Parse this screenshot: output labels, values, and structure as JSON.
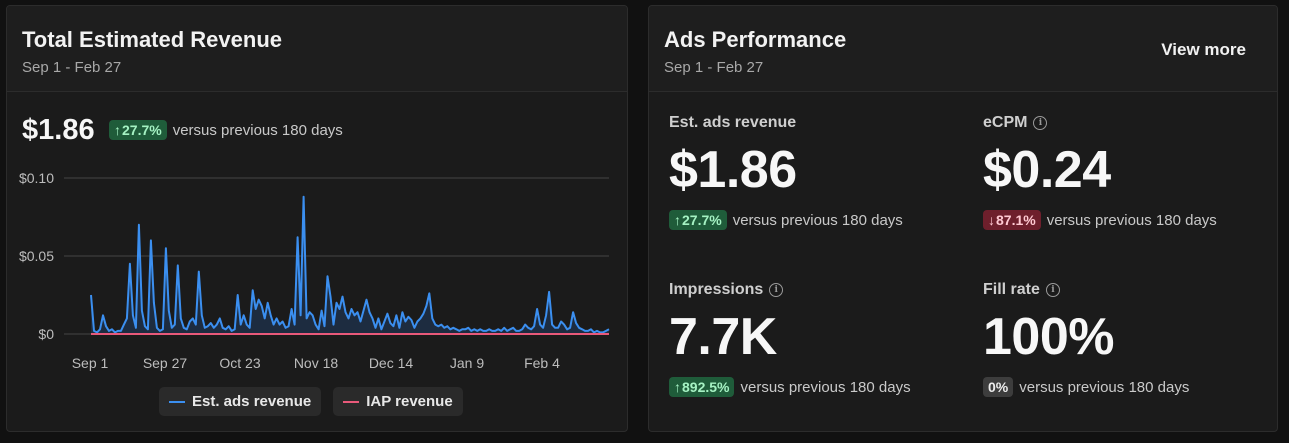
{
  "revenue_card": {
    "title": "Total Estimated Revenue",
    "date_range": "Sep 1 - Feb 27",
    "total": "$1.86",
    "change": "27.7%",
    "change_arrow": "↑",
    "comparison": "versus previous 180 days"
  },
  "chart_data": {
    "type": "line",
    "title": "",
    "xlabel": "",
    "ylabel": "",
    "ylim": [
      0,
      0.1
    ],
    "y_ticks": [
      "$0.10",
      "$0.05",
      "$0"
    ],
    "x_ticks": [
      "Sep 1",
      "Sep 27",
      "Oct 23",
      "Nov 18",
      "Dec 14",
      "Jan 9",
      "Feb 4"
    ],
    "grid": true,
    "series": [
      {
        "name": "Est. ads revenue",
        "color": "#3b8ff0",
        "values": [
          0.025,
          0.002,
          0.001,
          0.003,
          0.012,
          0.005,
          0.002,
          0.003,
          0.001,
          0.002,
          0.002,
          0.006,
          0.01,
          0.045,
          0.012,
          0.004,
          0.07,
          0.015,
          0.005,
          0.003,
          0.06,
          0.02,
          0.004,
          0.002,
          0.003,
          0.055,
          0.015,
          0.004,
          0.006,
          0.044,
          0.01,
          0.004,
          0.003,
          0.008,
          0.01,
          0.006,
          0.04,
          0.012,
          0.004,
          0.005,
          0.007,
          0.004,
          0.006,
          0.01,
          0.004,
          0.003,
          0.005,
          0.002,
          0.003,
          0.025,
          0.006,
          0.012,
          0.006,
          0.004,
          0.028,
          0.016,
          0.022,
          0.018,
          0.01,
          0.02,
          0.012,
          0.006,
          0.01,
          0.006,
          0.008,
          0.004,
          0.005,
          0.016,
          0.006,
          0.062,
          0.012,
          0.088,
          0.01,
          0.014,
          0.012,
          0.006,
          0.003,
          0.015,
          0.005,
          0.037,
          0.024,
          0.006,
          0.02,
          0.016,
          0.024,
          0.014,
          0.01,
          0.016,
          0.012,
          0.014,
          0.008,
          0.015,
          0.022,
          0.014,
          0.01,
          0.004,
          0.01,
          0.003,
          0.008,
          0.013,
          0.007,
          0.005,
          0.012,
          0.004,
          0.014,
          0.008,
          0.011,
          0.009,
          0.004,
          0.008,
          0.01,
          0.013,
          0.018,
          0.026,
          0.01,
          0.006,
          0.005,
          0.006,
          0.004,
          0.005,
          0.003,
          0.004,
          0.003,
          0.002,
          0.003,
          0.003,
          0.004,
          0.002,
          0.003,
          0.002,
          0.003,
          0.002,
          0.002,
          0.003,
          0.002,
          0.002,
          0.003,
          0.002,
          0.004,
          0.002,
          0.003,
          0.004,
          0.002,
          0.002,
          0.003,
          0.006,
          0.004,
          0.003,
          0.005,
          0.016,
          0.006,
          0.004,
          0.012,
          0.027,
          0.006,
          0.004,
          0.004,
          0.008,
          0.006,
          0.003,
          0.004,
          0.014,
          0.007,
          0.004,
          0.003,
          0.002,
          0.002,
          0.003,
          0.001,
          0.002,
          0.001,
          0.001,
          0.002,
          0.003
        ]
      },
      {
        "name": "IAP revenue",
        "color": "#e8597a",
        "values": [
          0,
          0,
          0,
          0,
          0,
          0,
          0,
          0,
          0,
          0,
          0,
          0,
          0,
          0,
          0,
          0,
          0,
          0,
          0,
          0,
          0,
          0,
          0,
          0,
          0,
          0,
          0,
          0,
          0,
          0,
          0,
          0,
          0,
          0,
          0,
          0,
          0,
          0,
          0,
          0,
          0,
          0,
          0,
          0,
          0,
          0,
          0,
          0,
          0,
          0,
          0,
          0,
          0,
          0,
          0,
          0,
          0,
          0,
          0,
          0,
          0,
          0,
          0,
          0,
          0,
          0,
          0,
          0,
          0,
          0,
          0,
          0,
          0,
          0,
          0,
          0,
          0,
          0,
          0,
          0,
          0,
          0,
          0,
          0,
          0,
          0,
          0,
          0,
          0,
          0,
          0,
          0,
          0,
          0,
          0,
          0,
          0,
          0,
          0,
          0,
          0,
          0,
          0,
          0,
          0,
          0,
          0,
          0,
          0,
          0,
          0,
          0,
          0,
          0,
          0,
          0,
          0,
          0,
          0,
          0,
          0,
          0,
          0,
          0,
          0,
          0,
          0,
          0,
          0,
          0,
          0,
          0,
          0,
          0,
          0,
          0,
          0,
          0,
          0,
          0,
          0,
          0,
          0,
          0,
          0,
          0,
          0,
          0,
          0,
          0,
          0,
          0,
          0,
          0,
          0,
          0,
          0,
          0,
          0,
          0,
          0,
          0,
          0,
          0,
          0,
          0,
          0,
          0,
          0,
          0,
          0,
          0,
          0,
          0,
          0,
          0,
          0,
          0,
          0
        ]
      }
    ]
  },
  "ads_card": {
    "title": "Ads Performance",
    "date_range": "Sep 1 - Feb 27",
    "view_more": "View more",
    "info_glyph": "i",
    "metrics": [
      {
        "label": "Est. ads revenue",
        "value": "$1.86",
        "change": "27.7%",
        "arrow": "↑",
        "trend": "up",
        "comparison": "versus previous 180 days",
        "info": false
      },
      {
        "label": "eCPM",
        "value": "$0.24",
        "change": "87.1%",
        "arrow": "↓",
        "trend": "down",
        "comparison": "versus previous 180 days",
        "info": true
      },
      {
        "label": "Impressions",
        "value": "7.7K",
        "change": "892.5%",
        "arrow": "↑",
        "trend": "up",
        "comparison": "versus previous 180 days",
        "info": true
      },
      {
        "label": "Fill rate",
        "value": "100%",
        "change": "0%",
        "arrow": "",
        "trend": "neutral",
        "comparison": "versus previous 180 days",
        "info": true
      }
    ]
  }
}
